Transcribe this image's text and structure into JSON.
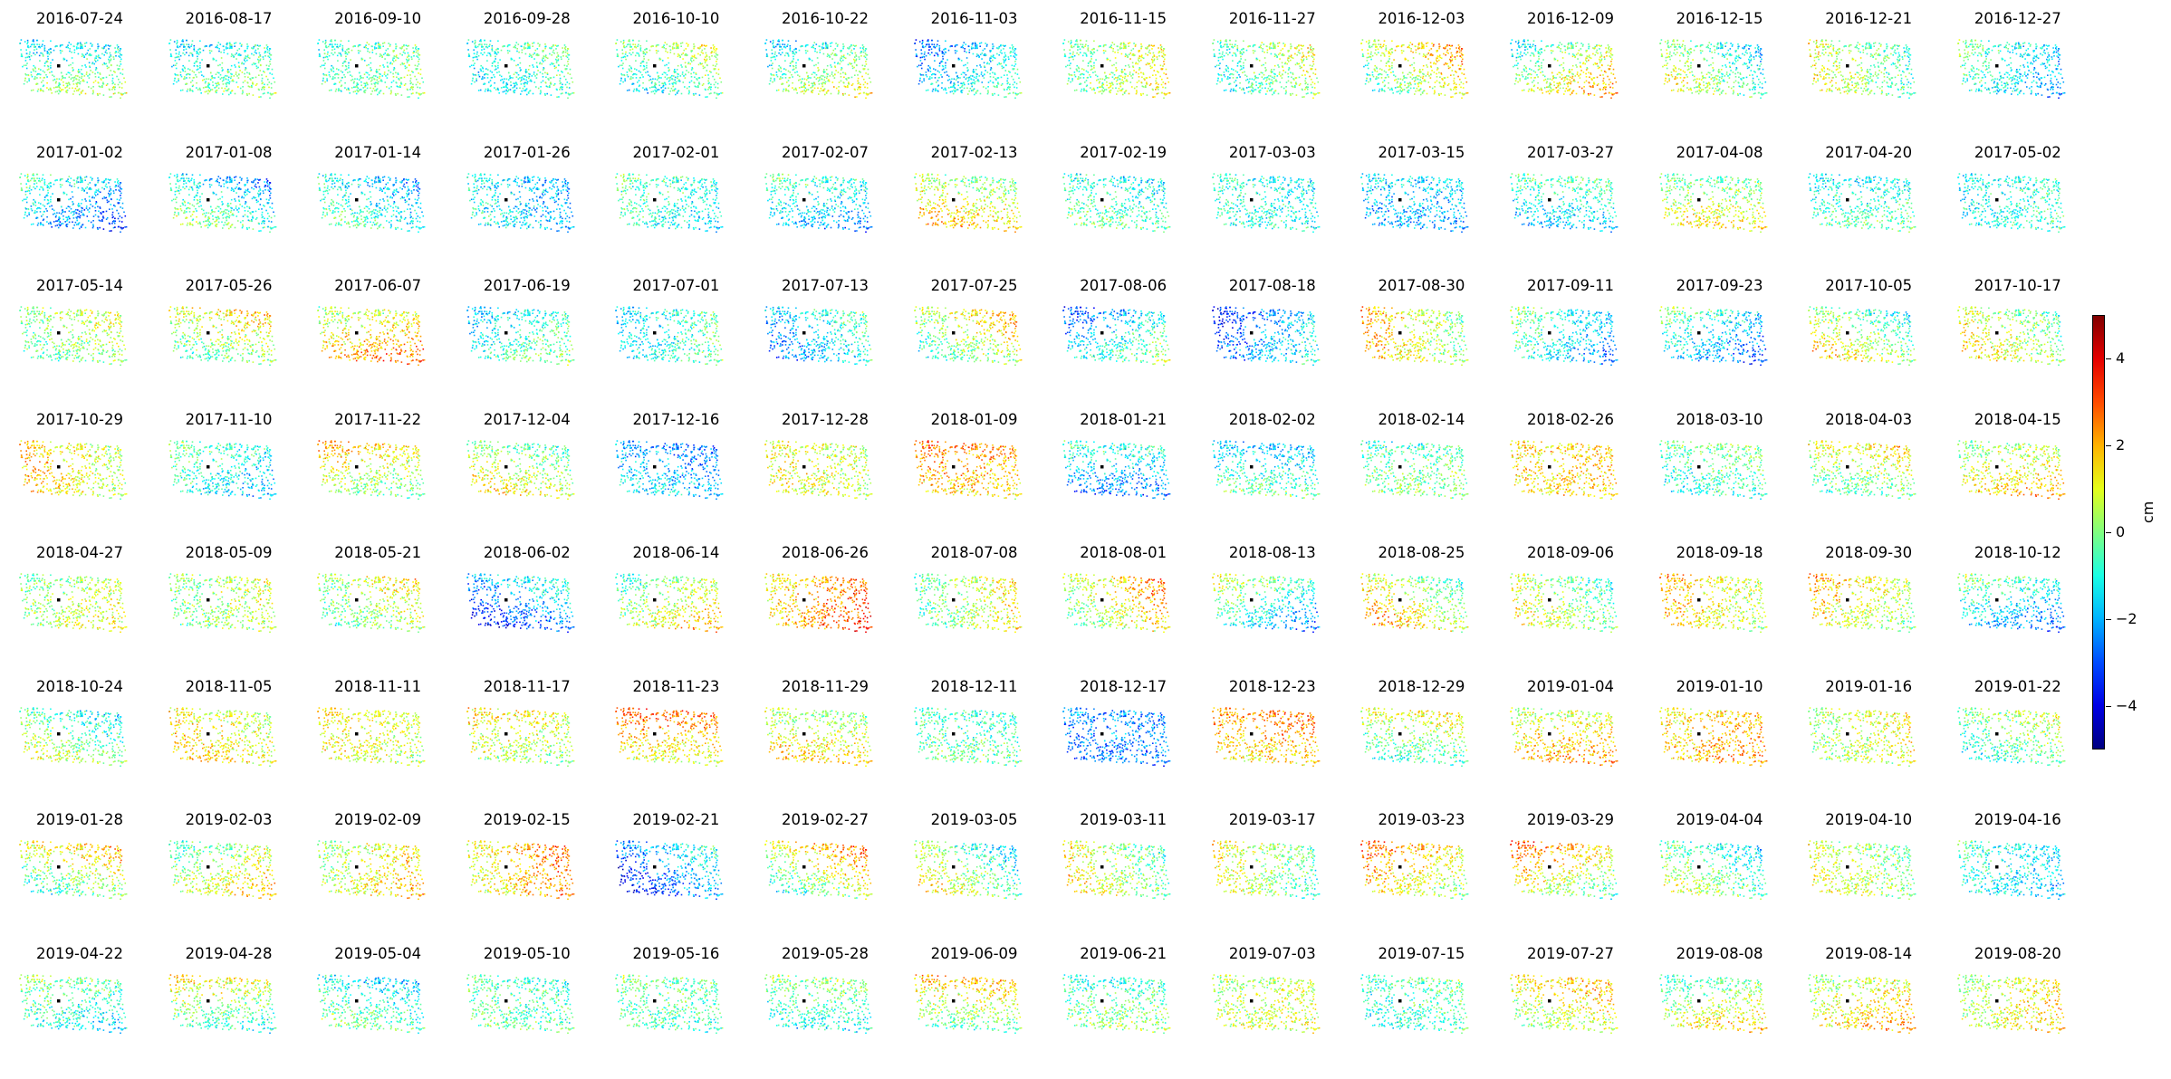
{
  "chart_data": {
    "type": "scatter",
    "subtype": "small-multiples displacement maps",
    "layout": {
      "rows": 8,
      "cols": 14
    },
    "colormap": "jet",
    "colorbar": {
      "label": "cm",
      "range": [
        -5,
        5
      ],
      "ticks": [
        {
          "value": 4,
          "label": "4"
        },
        {
          "value": 2,
          "label": "2"
        },
        {
          "value": 0,
          "label": "0"
        },
        {
          "value": -2,
          "label": "−2"
        },
        {
          "value": -4,
          "label": "−4"
        }
      ]
    },
    "reference_point_color": "#000000",
    "dates": [
      "2016-07-24",
      "2016-08-17",
      "2016-09-10",
      "2016-09-28",
      "2016-10-10",
      "2016-10-22",
      "2016-11-03",
      "2016-11-15",
      "2016-11-27",
      "2016-12-03",
      "2016-12-09",
      "2016-12-15",
      "2016-12-21",
      "2016-12-27",
      "2017-01-02",
      "2017-01-08",
      "2017-01-14",
      "2017-01-26",
      "2017-02-01",
      "2017-02-07",
      "2017-02-13",
      "2017-02-19",
      "2017-03-03",
      "2017-03-15",
      "2017-03-27",
      "2017-04-08",
      "2017-04-20",
      "2017-05-02",
      "2017-05-14",
      "2017-05-26",
      "2017-06-07",
      "2017-06-19",
      "2017-07-01",
      "2017-07-13",
      "2017-07-25",
      "2017-08-06",
      "2017-08-18",
      "2017-08-30",
      "2017-09-11",
      "2017-09-23",
      "2017-10-05",
      "2017-10-17",
      "2017-10-29",
      "2017-11-10",
      "2017-11-22",
      "2017-12-04",
      "2017-12-16",
      "2017-12-28",
      "2018-01-09",
      "2018-01-21",
      "2018-02-02",
      "2018-02-14",
      "2018-02-26",
      "2018-03-10",
      "2018-04-03",
      "2018-04-15",
      "2018-04-27",
      "2018-05-09",
      "2018-05-21",
      "2018-06-02",
      "2018-06-14",
      "2018-06-26",
      "2018-07-08",
      "2018-08-01",
      "2018-08-13",
      "2018-08-25",
      "2018-09-06",
      "2018-09-18",
      "2018-09-30",
      "2018-10-12",
      "2018-10-24",
      "2018-11-05",
      "2018-11-11",
      "2018-11-17",
      "2018-11-23",
      "2018-11-29",
      "2018-12-11",
      "2018-12-17",
      "2018-12-23",
      "2018-12-29",
      "2019-01-04",
      "2019-01-10",
      "2019-01-16",
      "2019-01-22",
      "2019-01-28",
      "2019-02-03",
      "2019-02-09",
      "2019-02-15",
      "2019-02-21",
      "2019-02-27",
      "2019-03-05",
      "2019-03-11",
      "2019-03-17",
      "2019-03-23",
      "2019-03-29",
      "2019-04-04",
      "2019-04-10",
      "2019-04-16",
      "2019-04-22",
      "2019-04-28",
      "2019-05-04",
      "2019-05-10",
      "2019-05-16",
      "2019-05-28",
      "2019-06-09",
      "2019-06-21",
      "2019-07-03",
      "2019-07-15",
      "2019-07-27",
      "2019-08-08",
      "2019-08-14",
      "2019-08-20"
    ],
    "mean_displacement_cm": [
      -0.5,
      -0.6,
      -0.4,
      -0.8,
      -0.3,
      -0.2,
      -1.5,
      0.4,
      -0.1,
      0.8,
      0.5,
      -0.2,
      0.2,
      -1.2,
      -1.8,
      -1.0,
      -1.2,
      -1.6,
      -0.9,
      -1.3,
      1.0,
      -0.7,
      -1.0,
      -1.8,
      -1.1,
      0.6,
      -0.8,
      -1.0,
      0.2,
      0.5,
      1.5,
      -0.8,
      -1.0,
      -1.5,
      0.5,
      -1.3,
      -2.2,
      1.0,
      -1.2,
      -1.5,
      0.3,
      0.6,
      1.2,
      -1.0,
      0.8,
      0.5,
      -2.0,
      0.9,
      2.0,
      -1.7,
      -1.0,
      -0.3,
      1.6,
      -0.5,
      0.4,
      1.0,
      0.5,
      0.3,
      0.4,
      -2.3,
      0.6,
      2.2,
      0.4,
      1.0,
      -0.8,
      0.8,
      0.3,
      1.2,
      1.0,
      -1.3,
      -0.2,
      1.2,
      1.0,
      0.8,
      1.8,
      1.0,
      -0.5,
      -2.5,
      2.0,
      0.2,
      1.4,
      1.8,
      0.7,
      -0.2,
      0.5,
      0.6,
      1.0,
      1.8,
      -2.3,
      0.8,
      0.0,
      0.5,
      0.4,
      1.5,
      1.2,
      -0.3,
      0.5,
      -1.2,
      -0.6,
      0.2,
      -0.8,
      -0.5,
      -0.4,
      -0.5,
      0.8,
      -0.3,
      0.7,
      -0.6,
      1.0,
      0.5,
      1.2,
      1.0
    ]
  }
}
